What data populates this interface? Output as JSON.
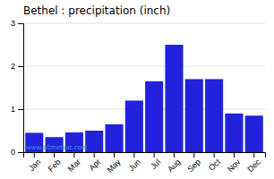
{
  "chart_data": {
    "type": "bar",
    "title": "Bethel : precipitation (inch)",
    "categories": [
      "Jan",
      "Feb",
      "Mar",
      "Apr",
      "May",
      "Jun",
      "Jul",
      "Aug",
      "Sep",
      "Oct",
      "Nov",
      "Dec"
    ],
    "values": [
      0.45,
      0.35,
      0.46,
      0.5,
      0.65,
      1.2,
      1.65,
      2.5,
      1.7,
      1.7,
      0.9,
      0.85
    ],
    "color": "#2222dd",
    "ylim": [
      0,
      3
    ],
    "yticks": [
      0,
      1,
      2,
      3
    ],
    "grid": true,
    "annotations": [
      "www.allmetsat.com"
    ]
  }
}
